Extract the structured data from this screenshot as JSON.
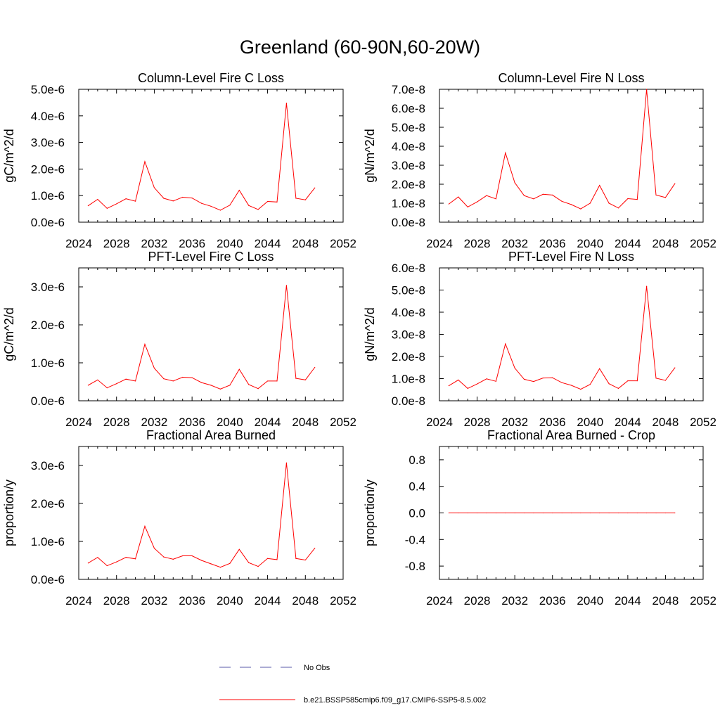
{
  "title": "Greenland (60-90N,60-20W)",
  "colors": {
    "series": "#ff0000",
    "obs": "#5a5aa8",
    "axis": "#000000"
  },
  "legend": {
    "obs_label": "No Obs",
    "model_label": "b.e21.BSSP585cmip6.f09_g17.CMIP6-SSP5-8.5.002"
  },
  "chart_data": [
    {
      "type": "line",
      "title": "Column-Level Fire C Loss",
      "ylabel": "gC/m^2/d",
      "xlim": [
        2024,
        2052
      ],
      "ylim": [
        0,
        5e-06
      ],
      "xticks": [
        "2024",
        "2028",
        "2032",
        "2036",
        "2040",
        "2044",
        "2048",
        "2052"
      ],
      "yticks": [
        0,
        1e-06,
        2e-06,
        3e-06,
        4e-06,
        5e-06
      ],
      "ytick_labels": [
        "0.0e-6",
        "1.0e-6",
        "2.0e-6",
        "3.0e-6",
        "4.0e-6",
        "5.0e-6"
      ],
      "x": [
        2025,
        2026,
        2027,
        2028,
        2029,
        2030,
        2031,
        2032,
        2033,
        2034,
        2035,
        2036,
        2037,
        2038,
        2039,
        2040,
        2041,
        2042,
        2043,
        2044,
        2045,
        2046,
        2047,
        2048,
        2049
      ],
      "series": [
        {
          "name": "b.e21.BSSP585cmip6.f09_g17.CMIP6-SSP5-8.5.002",
          "values": [
            6.2e-07,
            8.6e-07,
            5.2e-07,
            6.9e-07,
            8.8e-07,
            7.9e-07,
            2.28e-06,
            1.3e-06,
            9e-07,
            8e-07,
            9.4e-07,
            9.1e-07,
            7.1e-07,
            6e-07,
            4.5e-07,
            6.4e-07,
            1.2e-06,
            6.3e-07,
            4.8e-07,
            7.8e-07,
            7.6e-07,
            4.48e-06,
            9e-07,
            8.4e-07,
            1.29e-06
          ]
        }
      ]
    },
    {
      "type": "line",
      "title": "Column-Level Fire N Loss",
      "ylabel": "gN/m^2/d",
      "xlim": [
        2024,
        2052
      ],
      "ylim": [
        0,
        7e-08
      ],
      "xticks": [
        "2024",
        "2028",
        "2032",
        "2036",
        "2040",
        "2044",
        "2048",
        "2052"
      ],
      "yticks": [
        0,
        1e-08,
        2e-08,
        3e-08,
        4e-08,
        5e-08,
        6e-08,
        7e-08
      ],
      "ytick_labels": [
        "0.0e-8",
        "1.0e-8",
        "2.0e-8",
        "3.0e-8",
        "4.0e-8",
        "5.0e-8",
        "6.0e-8",
        "7.0e-8"
      ],
      "x": [
        2025,
        2026,
        2027,
        2028,
        2029,
        2030,
        2031,
        2032,
        2033,
        2034,
        2035,
        2036,
        2037,
        2038,
        2039,
        2040,
        2041,
        2042,
        2043,
        2044,
        2045,
        2046,
        2047,
        2048,
        2049
      ],
      "series": [
        {
          "name": "b.e21.BSSP585cmip6.f09_g17.CMIP6-SSP5-8.5.002",
          "values": [
            9.6e-09,
            1.33e-08,
            8e-09,
            1.07e-08,
            1.4e-08,
            1.23e-08,
            3.65e-08,
            2.08e-08,
            1.4e-08,
            1.23e-08,
            1.47e-08,
            1.43e-08,
            1.1e-08,
            9.3e-09,
            7e-09,
            1e-08,
            1.94e-08,
            1e-08,
            7.5e-09,
            1.24e-08,
            1.2e-08,
            7e-08,
            1.43e-08,
            1.3e-08,
            2.03e-08
          ]
        }
      ]
    },
    {
      "type": "line",
      "title": "PFT-Level Fire C Loss",
      "ylabel": "gC/m^2/d",
      "xlim": [
        2024,
        2052
      ],
      "ylim": [
        0,
        3.5e-06
      ],
      "xticks": [
        "2024",
        "2028",
        "2032",
        "2036",
        "2040",
        "2044",
        "2048",
        "2052"
      ],
      "yticks": [
        0,
        1e-06,
        2e-06,
        3e-06
      ],
      "ytick_labels": [
        "0.0e-6",
        "1.0e-6",
        "2.0e-6",
        "3.0e-6"
      ],
      "x": [
        2025,
        2026,
        2027,
        2028,
        2029,
        2030,
        2031,
        2032,
        2033,
        2034,
        2035,
        2036,
        2037,
        2038,
        2039,
        2040,
        2041,
        2042,
        2043,
        2044,
        2045,
        2046,
        2047,
        2048,
        2049
      ],
      "series": [
        {
          "name": "b.e21.BSSP585cmip6.f09_g17.CMIP6-SSP5-8.5.002",
          "values": [
            4.1e-07,
            5.5e-07,
            3.4e-07,
            4.5e-07,
            5.7e-07,
            5.2e-07,
            1.49e-06,
            8.6e-07,
            5.8e-07,
            5.2e-07,
            6.2e-07,
            6.1e-07,
            4.8e-07,
            4.1e-07,
            3.1e-07,
            4.1e-07,
            8.3e-07,
            4.3e-07,
            3.2e-07,
            5.2e-07,
            5.2e-07,
            3.04e-06,
            5.9e-07,
            5.5e-07,
            8.8e-07
          ]
        }
      ]
    },
    {
      "type": "line",
      "title": "PFT-Level Fire N Loss",
      "ylabel": "gN/m^2/d",
      "xlim": [
        2024,
        2052
      ],
      "ylim": [
        0,
        6e-08
      ],
      "xticks": [
        "2024",
        "2028",
        "2032",
        "2036",
        "2040",
        "2044",
        "2048",
        "2052"
      ],
      "yticks": [
        0,
        1e-08,
        2e-08,
        3e-08,
        4e-08,
        5e-08,
        6e-08
      ],
      "ytick_labels": [
        "0.0e-8",
        "1.0e-8",
        "2.0e-8",
        "3.0e-8",
        "4.0e-8",
        "5.0e-8",
        "6.0e-8"
      ],
      "x": [
        2025,
        2026,
        2027,
        2028,
        2029,
        2030,
        2031,
        2032,
        2033,
        2034,
        2035,
        2036,
        2037,
        2038,
        2039,
        2040,
        2041,
        2042,
        2043,
        2044,
        2045,
        2046,
        2047,
        2048,
        2049
      ],
      "series": [
        {
          "name": "b.e21.BSSP585cmip6.f09_g17.CMIP6-SSP5-8.5.002",
          "values": [
            6.8e-09,
            9.4e-09,
            5.6e-09,
            7.6e-09,
            9.9e-09,
            8.8e-09,
            2.57e-08,
            1.48e-08,
            9.7e-09,
            8.7e-09,
            1.03e-08,
            1.04e-08,
            8.2e-09,
            7e-09,
            5.2e-09,
            7.4e-09,
            1.45e-08,
            7.7e-09,
            5.6e-09,
            9e-09,
            9e-09,
            5.17e-08,
            1.02e-08,
            9.2e-09,
            1.49e-08
          ]
        }
      ]
    },
    {
      "type": "line",
      "title": "Fractional Area Burned",
      "ylabel": "proportion/y",
      "xlim": [
        2024,
        2052
      ],
      "ylim": [
        0,
        3.5e-06
      ],
      "xticks": [
        "2024",
        "2028",
        "2032",
        "2036",
        "2040",
        "2044",
        "2048",
        "2052"
      ],
      "yticks": [
        0,
        1e-06,
        2e-06,
        3e-06
      ],
      "ytick_labels": [
        "0.0e-6",
        "1.0e-6",
        "2.0e-6",
        "3.0e-6"
      ],
      "x": [
        2025,
        2026,
        2027,
        2028,
        2029,
        2030,
        2031,
        2032,
        2033,
        2034,
        2035,
        2036,
        2037,
        2038,
        2039,
        2040,
        2041,
        2042,
        2043,
        2044,
        2045,
        2046,
        2047,
        2048,
        2049
      ],
      "series": [
        {
          "name": "b.e21.BSSP585cmip6.f09_g17.CMIP6-SSP5-8.5.002",
          "values": [
            4.3e-07,
            5.8e-07,
            3.6e-07,
            4.6e-07,
            5.8e-07,
            5.4e-07,
            1.4e-06,
            8.2e-07,
            5.9e-07,
            5.3e-07,
            6.2e-07,
            6.2e-07,
            5e-07,
            4.1e-07,
            3.2e-07,
            4.2e-07,
            7.9e-07,
            4.4e-07,
            3.4e-07,
            5.5e-07,
            5.2e-07,
            3.07e-06,
            5.5e-07,
            5.1e-07,
            8.2e-07
          ]
        }
      ]
    },
    {
      "type": "line",
      "title": "Fractional Area Burned - Crop",
      "ylabel": "proportion/y",
      "xlim": [
        2024,
        2052
      ],
      "ylim": [
        -1.0,
        1.0
      ],
      "xticks": [
        "2024",
        "2028",
        "2032",
        "2036",
        "2040",
        "2044",
        "2048",
        "2052"
      ],
      "yticks": [
        -0.8,
        -0.4,
        0.0,
        0.4,
        0.8
      ],
      "ytick_labels": [
        "-0.8",
        "-0.4",
        "0.0",
        "0.4",
        "0.8"
      ],
      "x": [
        2025,
        2026,
        2027,
        2028,
        2029,
        2030,
        2031,
        2032,
        2033,
        2034,
        2035,
        2036,
        2037,
        2038,
        2039,
        2040,
        2041,
        2042,
        2043,
        2044,
        2045,
        2046,
        2047,
        2048,
        2049
      ],
      "series": [
        {
          "name": "b.e21.BSSP585cmip6.f09_g17.CMIP6-SSP5-8.5.002",
          "values": [
            0,
            0,
            0,
            0,
            0,
            0,
            0,
            0,
            0,
            0,
            0,
            0,
            0,
            0,
            0,
            0,
            0,
            0,
            0,
            0,
            0,
            0,
            0,
            0,
            0
          ]
        }
      ]
    }
  ]
}
